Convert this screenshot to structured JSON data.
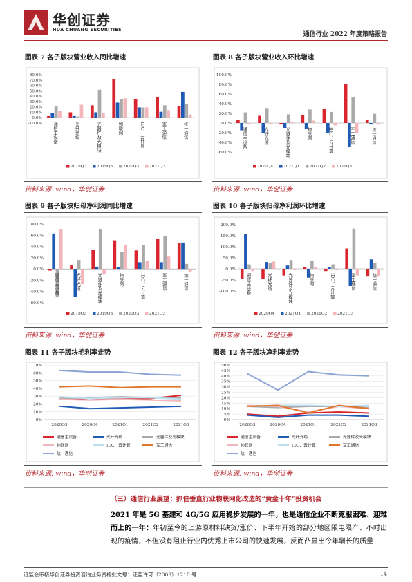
{
  "header": {
    "company_cn": "华创证券",
    "company_en": "HUA CHUANG SECURITIES",
    "report_title": "通信行业 2022 年度策略报告"
  },
  "colors": {
    "brand": "#b3252c",
    "accent_blue": "#1f5bb4"
  },
  "source_text": "资料来源: wind，华创证券",
  "charts": [
    {
      "title": "图表 7   各子版块营业收入同比增速",
      "type": "bar"
    },
    {
      "title": "图表 8   各子版块营业收入环比增速",
      "type": "bar"
    },
    {
      "title": "图表 9   各子版块归母净利润同比增速",
      "type": "bar"
    },
    {
      "title": "图表 10   各子版块归母净利润环比增速",
      "type": "bar"
    },
    {
      "title": "图表 11   各子版块毛利率走势",
      "type": "line"
    },
    {
      "title": "图表 12   各子版块净利率走势",
      "type": "line"
    }
  ],
  "chart_data": [
    {
      "type": "bar",
      "categories": [
        "通信主设备",
        "光纤光缆",
        "光器件及光模块",
        "物联网",
        "IDC、云计算",
        "军工通信",
        "统一通信"
      ],
      "ylim": [
        -10,
        80
      ],
      "yticks": [
        "80.0%",
        "70.0%",
        "60.0%",
        "50.0%",
        "40.0%",
        "30.0%",
        "20.0%",
        "10.0%",
        "0.0%",
        "-10.0%"
      ],
      "series": [
        {
          "name": "2018Q3",
          "color": "#d9262e",
          "values": [
            3,
            10,
            23,
            72,
            35,
            38,
            21
          ]
        },
        {
          "name": "2019Q3",
          "color": "#1f5bb4",
          "values": [
            8,
            3,
            10,
            28,
            19,
            11,
            48
          ]
        },
        {
          "name": "2020Q3",
          "color": "#aaaaaa",
          "values": [
            21,
            2,
            52,
            35,
            19,
            23,
            26
          ]
        },
        {
          "name": "2021Q3",
          "color": "#f2b6bb",
          "values": [
            13,
            24,
            9,
            36,
            19,
            14,
            6
          ]
        }
      ]
    },
    {
      "type": "bar",
      "categories": [
        "通信主设备",
        "光纤光缆",
        "光器件及光模块",
        "物联网",
        "IDC、云计算",
        "军工通信",
        "统一通信"
      ],
      "ylim": [
        -60,
        100
      ],
      "yticks": [
        "100.0%",
        "80.0%",
        "60.0%",
        "40.0%",
        "20.0%",
        "0.0%",
        "-20.0%",
        "-40.0%",
        "-60.0%"
      ],
      "series": [
        {
          "name": "2020Q4",
          "color": "#d9262e",
          "values": [
            7,
            15,
            -3,
            16,
            29,
            80,
            6
          ]
        },
        {
          "name": "2021Q1",
          "color": "#1f5bb4",
          "values": [
            -15,
            -20,
            -10,
            -12,
            -20,
            -50,
            -3
          ]
        },
        {
          "name": "2021Q2",
          "color": "#aaaaaa",
          "values": [
            22,
            31,
            18,
            28,
            23,
            54,
            19
          ]
        },
        {
          "name": "2021Q3",
          "color": "#f2b6bb",
          "values": [
            -2,
            -3,
            3,
            5,
            -5,
            -20,
            -3
          ]
        }
      ]
    },
    {
      "type": "bar",
      "categories": [
        "通信主设备",
        "光纤光缆",
        "光器件及光模块",
        "物联网",
        "IDC、云计算",
        "军工通信",
        "统一通信"
      ],
      "ylim": [
        -60,
        80
      ],
      "yticks": [
        "80.0%",
        "60.0%",
        "40.0%",
        "20.0%",
        "0.0%",
        "-20.0%",
        "-40.0%",
        "-60.0%"
      ],
      "series": [
        {
          "name": "2018Q3",
          "color": "#d9262e",
          "values": [
            -3,
            7,
            34,
            51,
            33,
            53,
            46
          ]
        },
        {
          "name": "2019Q3",
          "color": "#1f5bb4",
          "values": [
            63,
            -50,
            4,
            3,
            12,
            12,
            47
          ]
        },
        {
          "name": "2020Q3",
          "color": "#aaaaaa",
          "values": [
            -49,
            16,
            71,
            30,
            42,
            59,
            9
          ]
        },
        {
          "name": "2021Q3",
          "color": "#f2b6bb",
          "values": [
            70,
            -27,
            -10,
            42,
            15,
            22,
            -5
          ]
        }
      ]
    },
    {
      "type": "bar",
      "categories": [
        "通信主设备",
        "光纤光缆",
        "光器件及光模块",
        "物联网",
        "IDC、云计算",
        "军工通信",
        "统一通信"
      ],
      "ylim": [
        -100,
        200
      ],
      "yticks": [
        "200.0%",
        "150.0%",
        "100.0%",
        "50.0%",
        "0.0%",
        "-50.0%",
        "-100.0%"
      ],
      "series": [
        {
          "name": "2020Q4",
          "color": "#d9262e",
          "values": [
            -45,
            -45,
            -30,
            8,
            -10,
            92,
            -35
          ]
        },
        {
          "name": "2021Q1",
          "color": "#1f5bb4",
          "values": [
            157,
            31,
            15,
            -40,
            8,
            -78,
            43
          ]
        },
        {
          "name": "2021Q2",
          "color": "#aaaaaa",
          "values": [
            20,
            25,
            40,
            35,
            20,
            182,
            25
          ]
        },
        {
          "name": "2021Q3",
          "color": "#f2b6bb",
          "values": [
            -10,
            33,
            -5,
            7,
            -3,
            -30,
            -35
          ]
        }
      ]
    },
    {
      "type": "line",
      "categories": [
        "2020Q3",
        "2020Q4",
        "2021Q1",
        "2021Q2",
        "2021Q3"
      ],
      "ylim": [
        0,
        70
      ],
      "yticks": [
        "70%",
        "60%",
        "50%",
        "40%",
        "30%",
        "20%",
        "10%",
        "0%"
      ],
      "series": [
        {
          "name": "通信主设备",
          "color": "#d9262e",
          "values": [
            27,
            27,
            27,
            27,
            31
          ]
        },
        {
          "name": "光纤光缆",
          "color": "#1f5bb4",
          "values": [
            17,
            14,
            15,
            16,
            17
          ]
        },
        {
          "name": "光器件及光模块",
          "color": "#aaaaaa",
          "values": [
            27,
            28,
            29,
            28,
            28
          ]
        },
        {
          "name": "物联网",
          "color": "#f2b6bb",
          "values": [
            26,
            25,
            26,
            25,
            24
          ]
        },
        {
          "name": "IDC、云计算",
          "color": "#bfe0f0",
          "values": [
            29,
            27,
            28,
            28,
            26
          ]
        },
        {
          "name": "军工通信",
          "color": "#e0762a",
          "values": [
            42,
            43,
            41,
            42,
            42
          ]
        },
        {
          "name": "统一通信",
          "color": "#8aa3d3",
          "values": [
            63,
            61,
            61,
            58,
            57
          ]
        }
      ]
    },
    {
      "type": "line",
      "categories": [
        "2020Q3",
        "2020Q4",
        "2021Q1",
        "2021Q2",
        "2021Q3"
      ],
      "ylim": [
        0,
        50
      ],
      "yticks": [
        "50%",
        "45%",
        "40%",
        "35%",
        "30%",
        "25%",
        "20%",
        "15%",
        "10%",
        "5%",
        "0%"
      ],
      "series": [
        {
          "name": "通信主设备",
          "color": "#d9262e",
          "values": [
            5,
            3,
            6,
            7,
            6
          ]
        },
        {
          "name": "光纤光缆",
          "color": "#1f5bb4",
          "values": [
            4,
            2,
            4,
            4,
            3
          ]
        },
        {
          "name": "光器件及光模块",
          "color": "#aaaaaa",
          "values": [
            12,
            11,
            12,
            12,
            11
          ]
        },
        {
          "name": "物联网",
          "color": "#f2b6bb",
          "values": [
            13,
            12,
            7,
            12,
            10
          ]
        },
        {
          "name": "IDC、云计算",
          "color": "#bfe0f0",
          "values": [
            12,
            13,
            13,
            12,
            13
          ]
        },
        {
          "name": "军工通信",
          "color": "#e0762a",
          "values": [
            12,
            13,
            6,
            13,
            10
          ]
        },
        {
          "name": "统一通信",
          "color": "#8aa3d3",
          "values": [
            42,
            27,
            44,
            41,
            40
          ]
        }
      ]
    }
  ],
  "section_heading": "（三）通信行业展望：抓住垂直行业物联网化改造的“黄金十年”投资机会",
  "body": {
    "bold": "2021 年是 5G 基建和 4G/5G 应用稳步发展的一年，也是通信企业不断克服困难、迎难而上的一年：",
    "normal": "年初至今的上游原材料缺货/涨价、下半年开始的部分地区限电限产、不时出现的疫情，不但没有阻止行业内优秀上市公司的快速发展，反而凸显出今年增长的质量"
  },
  "footer": {
    "disclaimer": "证监会审核华创证券投资咨询业务资格批文号：证监许可（2009）1210 号",
    "page": "14"
  }
}
